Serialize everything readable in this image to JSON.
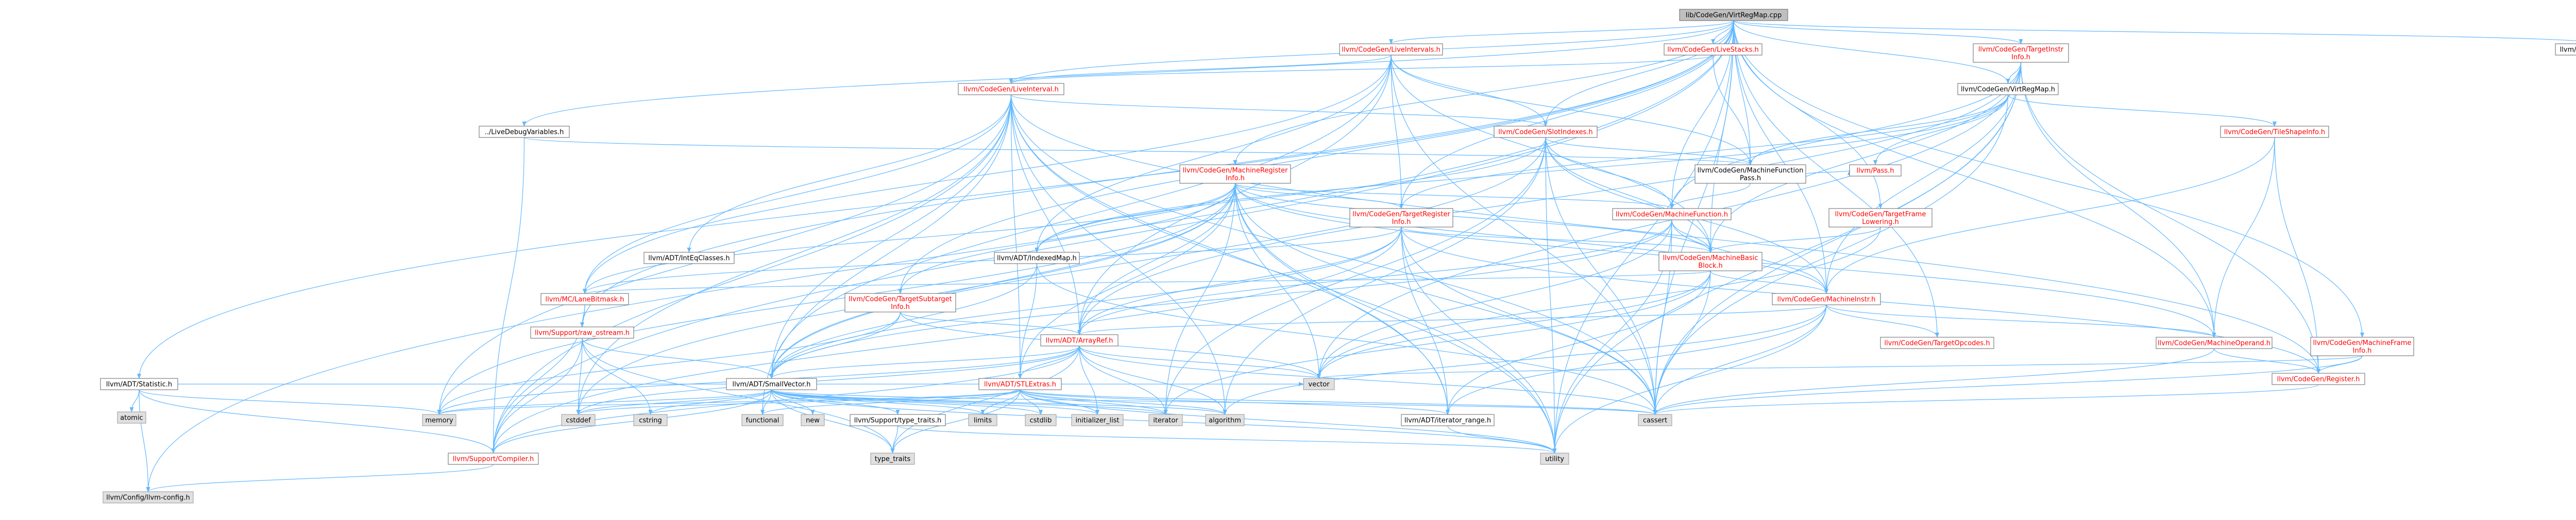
{
  "graph": {
    "colors": {
      "root_fill": "#bfbfbf",
      "box_fill": "#ffffff",
      "box_stroke": "#666666",
      "red_text": "#ff0000",
      "black_text": "#000000",
      "gray_fill": "#e0e0e0",
      "edge": "#63b8ff"
    },
    "nodes": [
      {
        "id": "root",
        "label": "lib/CodeGen/VirtRegMap.cpp",
        "style": "root"
      },
      {
        "id": "ADTStatistic",
        "label": "llvm/ADT/Statistic.h",
        "style": "black"
      },
      {
        "id": "LiveDebugVariables",
        "label": "../LiveDebugVariables.h",
        "style": "black"
      },
      {
        "id": "LiveIntervals",
        "label": "llvm/CodeGen/LiveIntervals.h",
        "style": "red"
      },
      {
        "id": "LiveStacks",
        "label": "llvm/CodeGen/LiveStacks.h",
        "style": "red"
      },
      {
        "id": "TargetInstrInfo",
        "label": "llvm/CodeGen/TargetInstr\nInfo.h",
        "style": "red"
      },
      {
        "id": "SupportDebug",
        "label": "llvm/Support/Debug.h",
        "style": "black"
      },
      {
        "id": "LiveInterval",
        "label": "llvm/CodeGen/LiveInterval.h",
        "style": "red"
      },
      {
        "id": "VirtRegMapH",
        "label": "llvm/CodeGen/VirtRegMap.h",
        "style": "black"
      },
      {
        "id": "SlotIndexes",
        "label": "llvm/CodeGen/SlotIndexes.h",
        "style": "red"
      },
      {
        "id": "TileShapeInfo",
        "label": "llvm/CodeGen/TileShapeInfo.h",
        "style": "red"
      },
      {
        "id": "MachineFunctionPass",
        "label": "llvm/CodeGen/MachineFunction\nPass.h",
        "style": "black"
      },
      {
        "id": "MachineRegisterInfo",
        "label": "llvm/CodeGen/MachineRegister\nInfo.h",
        "style": "red"
      },
      {
        "id": "TargetRegisterInfo",
        "label": "llvm/CodeGen/TargetRegister\nInfo.h",
        "style": "red"
      },
      {
        "id": "MachineFunction",
        "label": "llvm/CodeGen/MachineFunction.h",
        "style": "red"
      },
      {
        "id": "TargetFrameLowering",
        "label": "llvm/CodeGen/TargetFrame\nLowering.h",
        "style": "red"
      },
      {
        "id": "Pass",
        "label": "llvm/Pass.h",
        "style": "red"
      },
      {
        "id": "IntEqClasses",
        "label": "llvm/ADT/IntEqClasses.h",
        "style": "black"
      },
      {
        "id": "IndexedMap",
        "label": "llvm/ADT/IndexedMap.h",
        "style": "black"
      },
      {
        "id": "MachineBasicBlock",
        "label": "llvm/CodeGen/MachineBasic\nBlock.h",
        "style": "red"
      },
      {
        "id": "LaneBitmask",
        "label": "llvm/MC/LaneBitmask.h",
        "style": "red"
      },
      {
        "id": "TargetSubtargetInfo",
        "label": "llvm/CodeGen/TargetSubtarget\nInfo.h",
        "style": "red"
      },
      {
        "id": "MachineInstr",
        "label": "llvm/CodeGen/MachineInstr.h",
        "style": "red"
      },
      {
        "id": "RawOstream",
        "label": "llvm/Support/raw_ostream.h",
        "style": "red"
      },
      {
        "id": "ArrayRef",
        "label": "llvm/ADT/ArrayRef.h",
        "style": "red"
      },
      {
        "id": "TargetOpcodes",
        "label": "llvm/CodeGen/TargetOpcodes.h",
        "style": "red"
      },
      {
        "id": "MachineOperand",
        "label": "llvm/CodeGen/MachineOperand.h",
        "style": "red"
      },
      {
        "id": "MachineFrameInfo",
        "label": "llvm/CodeGen/MachineFrame\nInfo.h",
        "style": "red"
      },
      {
        "id": "atomic",
        "label": "atomic",
        "style": "gray"
      },
      {
        "id": "SmallVector",
        "label": "llvm/ADT/SmallVector.h",
        "style": "black"
      },
      {
        "id": "STLExtras",
        "label": "llvm/ADT/STLExtras.h",
        "style": "red"
      },
      {
        "id": "vector",
        "label": "vector",
        "style": "gray"
      },
      {
        "id": "Register",
        "label": "llvm/CodeGen/Register.h",
        "style": "red"
      },
      {
        "id": "memory",
        "label": "memory",
        "style": "gray"
      },
      {
        "id": "cstddef",
        "label": "cstddef",
        "style": "gray"
      },
      {
        "id": "cstring",
        "label": "cstring",
        "style": "gray"
      },
      {
        "id": "functional",
        "label": "functional",
        "style": "gray"
      },
      {
        "id": "new",
        "label": "new",
        "style": "gray"
      },
      {
        "id": "typeTraitsH",
        "label": "llvm/Support/type_traits.h",
        "style": "black"
      },
      {
        "id": "limits",
        "label": "limits",
        "style": "gray"
      },
      {
        "id": "cstdlib",
        "label": "cstdlib",
        "style": "gray"
      },
      {
        "id": "initializer_list",
        "label": "initializer_list",
        "style": "gray"
      },
      {
        "id": "iterator",
        "label": "iterator",
        "style": "gray"
      },
      {
        "id": "algorithm",
        "label": "algorithm",
        "style": "gray"
      },
      {
        "id": "IteratorRange",
        "label": "llvm/ADT/iterator_range.h",
        "style": "black"
      },
      {
        "id": "cassert",
        "label": "cassert",
        "style": "gray"
      },
      {
        "id": "Compiler",
        "label": "llvm/Support/Compiler.h",
        "style": "red"
      },
      {
        "id": "type_traits",
        "label": "type_traits",
        "style": "gray"
      },
      {
        "id": "utility",
        "label": "utility",
        "style": "gray"
      },
      {
        "id": "ConfigH",
        "label": "llvm/Config/llvm-config.h",
        "style": "gray"
      }
    ]
  }
}
